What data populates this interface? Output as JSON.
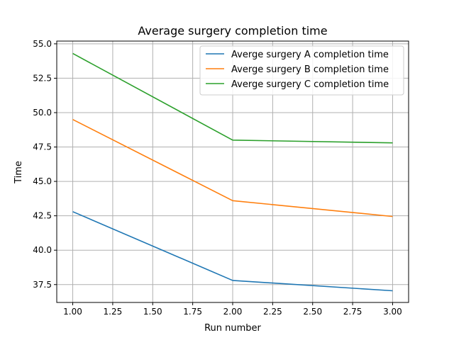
{
  "chart_data": {
    "type": "line",
    "title": "Average surgery completion time",
    "xlabel": "Run number",
    "ylabel": "Time",
    "x": [
      1,
      2,
      3
    ],
    "xlim": [
      0.9,
      3.1
    ],
    "ylim": [
      36.2,
      55.2
    ],
    "xticks": [
      1.0,
      1.25,
      1.5,
      1.75,
      2.0,
      2.25,
      2.5,
      2.75,
      3.0
    ],
    "xtick_labels": [
      "1.00",
      "1.25",
      "1.50",
      "1.75",
      "2.00",
      "2.25",
      "2.50",
      "2.75",
      "3.00"
    ],
    "yticks": [
      37.5,
      40.0,
      42.5,
      45.0,
      47.5,
      50.0,
      52.5,
      55.0
    ],
    "ytick_labels": [
      "37.5",
      "40.0",
      "42.5",
      "45.0",
      "47.5",
      "50.0",
      "52.5",
      "55.0"
    ],
    "grid": true,
    "legend_position": "top-right",
    "series": [
      {
        "name": "Averge surgery A completion time",
        "color": "#1f77b4",
        "values": [
          42.8,
          37.8,
          37.05
        ]
      },
      {
        "name": "Averge surgery B completion time",
        "color": "#ff7f0e",
        "values": [
          49.5,
          43.6,
          42.45
        ]
      },
      {
        "name": "Averge surgery C completion time",
        "color": "#2ca02c",
        "values": [
          54.3,
          48.0,
          47.8
        ]
      }
    ]
  }
}
